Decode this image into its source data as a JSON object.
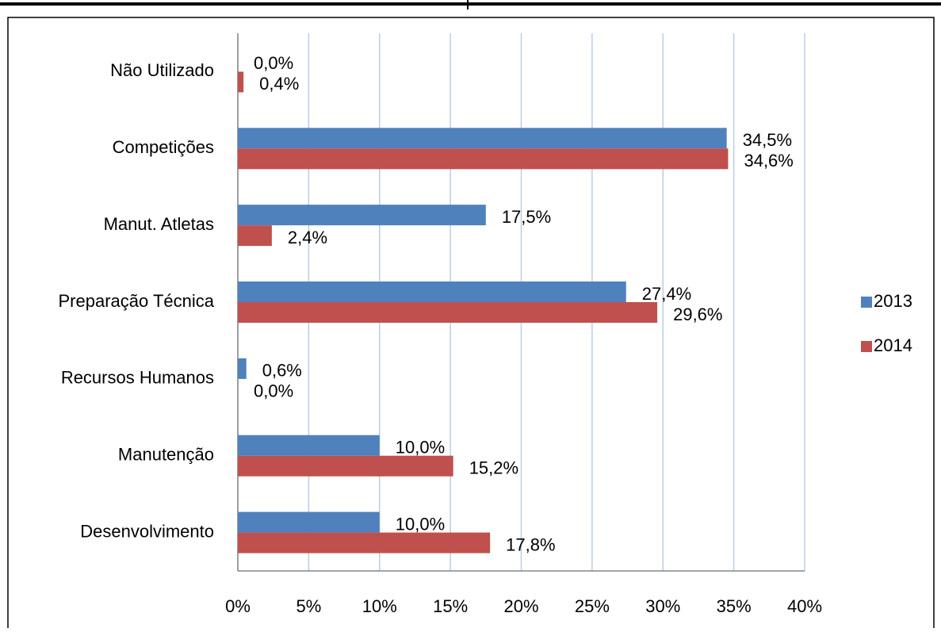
{
  "chart_data": {
    "type": "hbar",
    "categories": [
      "Não Utilizado",
      "Competições",
      "Manut. Atletas",
      "Preparação Técnica",
      "Recursos Humanos",
      "Manutenção",
      "Desenvolvimento"
    ],
    "series": [
      {
        "name": "2013",
        "color": "#4f81bd",
        "values": [
          0.0,
          34.5,
          17.5,
          27.4,
          0.6,
          10.0,
          10.0
        ],
        "value_labels": [
          "0,0%",
          "34,5%",
          "17,5%",
          "27,4%",
          "0,6%",
          "10,0%",
          "10,0%"
        ]
      },
      {
        "name": "2014",
        "color": "#c0504d",
        "values": [
          0.4,
          34.6,
          2.4,
          29.6,
          0.0,
          15.2,
          17.8
        ],
        "value_labels": [
          "0,4%",
          "34,6%",
          "2,4%",
          "29,6%",
          "0,0%",
          "15,2%",
          "17,8%"
        ]
      }
    ],
    "xlim": [
      0,
      40
    ],
    "xticks": [
      {
        "value": 0,
        "label": "0%"
      },
      {
        "value": 5,
        "label": "5%"
      },
      {
        "value": 10,
        "label": "10%"
      },
      {
        "value": 15,
        "label": "15%"
      },
      {
        "value": 20,
        "label": "20%"
      },
      {
        "value": 25,
        "label": "25%"
      },
      {
        "value": 30,
        "label": "30%"
      },
      {
        "value": 35,
        "label": "35%"
      },
      {
        "value": 40,
        "label": "40%"
      }
    ],
    "grid": true,
    "legend": "right"
  }
}
